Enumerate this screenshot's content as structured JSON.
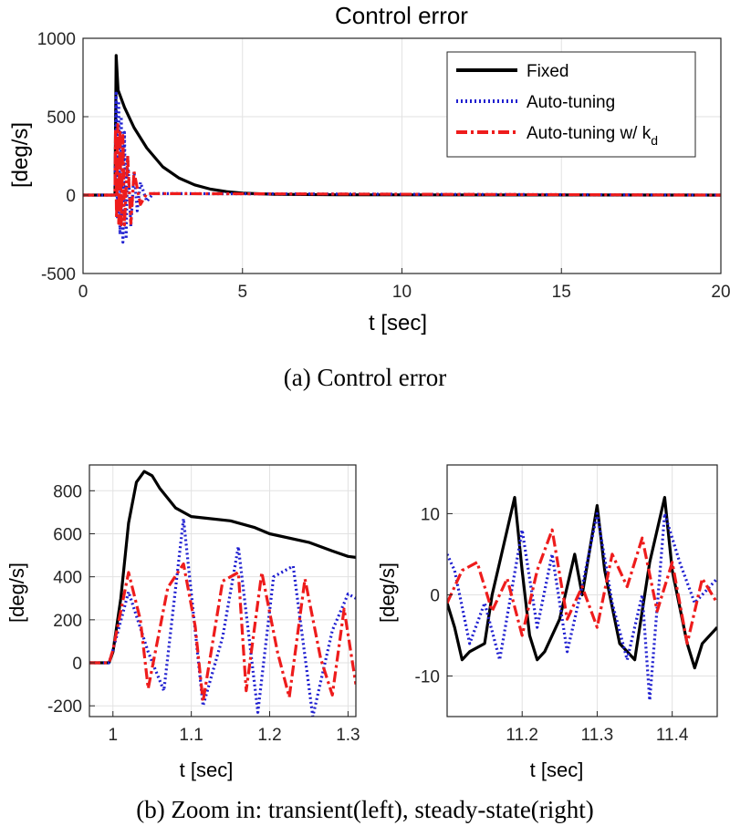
{
  "caption_a": "(a) Control error",
  "caption_b": "(b) Zoom in: transient(left), steady-state(right)",
  "colors": {
    "fixed": "#000000",
    "auto": "#1f1fd0",
    "autokd": "#ee1c1c"
  },
  "chart_data": [
    {
      "type": "line",
      "title": "Control error",
      "xlabel": "t [sec]",
      "ylabel": "[deg/s]",
      "xlim": [
        0,
        20
      ],
      "ylim": [
        -500,
        1000
      ],
      "xticks": [
        0,
        5,
        10,
        15,
        20
      ],
      "yticks": [
        -500,
        0,
        500,
        1000
      ],
      "grid": true,
      "legend_position": "top-right",
      "series": [
        {
          "name": "Fixed",
          "style": "solid",
          "color": "#000000",
          "x": [
            0,
            1.0,
            1.04,
            1.1,
            1.3,
            1.6,
            2.0,
            2.5,
            3.0,
            3.5,
            4.0,
            4.5,
            5.0,
            6.0,
            8.0,
            20.0
          ],
          "values": [
            0,
            0,
            890,
            670,
            560,
            430,
            300,
            180,
            110,
            65,
            38,
            22,
            12,
            5,
            2,
            0
          ]
        },
        {
          "name": "Auto-tuning",
          "style": "dotted",
          "color": "#1f1fd0",
          "x": [
            0,
            1.0,
            1.04,
            1.08,
            1.12,
            1.16,
            1.2,
            1.25,
            1.3,
            1.35,
            1.4,
            1.5,
            1.6,
            1.7,
            1.8,
            2.0,
            2.2,
            20.0
          ],
          "values": [
            0,
            0,
            650,
            -150,
            600,
            -250,
            500,
            -300,
            400,
            -280,
            250,
            -200,
            150,
            -100,
            80,
            -40,
            10,
            0
          ]
        },
        {
          "name": "Auto-tuning w/ k",
          "name_subscript": "d",
          "style": "dashdot",
          "color": "#ee1c1c",
          "x": [
            0,
            1.0,
            1.02,
            1.05,
            1.09,
            1.12,
            1.16,
            1.2,
            1.25,
            1.3,
            1.4,
            1.5,
            1.6,
            1.8,
            2.0,
            20.0
          ],
          "values": [
            0,
            0,
            420,
            -150,
            450,
            -180,
            420,
            -190,
            380,
            -190,
            250,
            -180,
            150,
            -60,
            10,
            0
          ]
        }
      ]
    },
    {
      "type": "line",
      "xlabel": "t [sec]",
      "ylabel": "[deg/s]",
      "xlim": [
        0.97,
        1.31
      ],
      "ylim": [
        -250,
        920
      ],
      "xticks": [
        1,
        1.1,
        1.2,
        1.3
      ],
      "yticks": [
        -200,
        0,
        200,
        400,
        600,
        800
      ],
      "grid": true,
      "series": [
        {
          "name": "Fixed",
          "style": "solid",
          "color": "#000000",
          "x": [
            0.97,
            0.995,
            1.0,
            1.01,
            1.02,
            1.03,
            1.04,
            1.05,
            1.06,
            1.08,
            1.1,
            1.12,
            1.15,
            1.18,
            1.2,
            1.25,
            1.28,
            1.3,
            1.31
          ],
          "values": [
            0,
            0,
            50,
            300,
            650,
            840,
            890,
            870,
            810,
            720,
            680,
            672,
            660,
            630,
            600,
            560,
            520,
            495,
            490
          ]
        },
        {
          "name": "Auto-tuning",
          "style": "dotted",
          "color": "#1f1fd0",
          "x": [
            0.97,
            0.995,
            1.0,
            1.02,
            1.045,
            1.065,
            1.09,
            1.115,
            1.14,
            1.16,
            1.185,
            1.205,
            1.23,
            1.255,
            1.28,
            1.3,
            1.31
          ],
          "values": [
            0,
            0,
            60,
            330,
            50,
            -130,
            670,
            -200,
            120,
            540,
            -230,
            400,
            450,
            -250,
            150,
            320,
            300
          ]
        },
        {
          "name": "Auto-tuning w/ k",
          "name_subscript": "d",
          "style": "dashdot",
          "color": "#ee1c1c",
          "x": [
            0.97,
            0.995,
            1.0,
            1.02,
            1.035,
            1.045,
            1.07,
            1.09,
            1.105,
            1.115,
            1.14,
            1.16,
            1.17,
            1.19,
            1.21,
            1.225,
            1.245,
            1.265,
            1.28,
            1.295,
            1.31
          ],
          "values": [
            0,
            0,
            60,
            420,
            200,
            -120,
            350,
            460,
            170,
            -180,
            380,
            420,
            -130,
            420,
            50,
            -160,
            390,
            20,
            -150,
            250,
            -100
          ]
        }
      ]
    },
    {
      "type": "line",
      "xlabel": "t [sec]",
      "ylabel": "[deg/s]",
      "xlim": [
        11.1,
        11.46
      ],
      "ylim": [
        -15,
        16
      ],
      "xticks": [
        11.2,
        11.3,
        11.4
      ],
      "yticks": [
        -10,
        0,
        10
      ],
      "grid": true,
      "series": [
        {
          "name": "Fixed",
          "style": "solid",
          "color": "#000000",
          "x": [
            11.1,
            11.11,
            11.12,
            11.13,
            11.15,
            11.16,
            11.17,
            11.19,
            11.2,
            11.21,
            11.22,
            11.23,
            11.25,
            11.27,
            11.28,
            11.3,
            11.31,
            11.33,
            11.35,
            11.36,
            11.37,
            11.39,
            11.4,
            11.42,
            11.43,
            11.44,
            11.46
          ],
          "values": [
            -1,
            -4,
            -8,
            -7,
            -6,
            0,
            4,
            12,
            3,
            -5,
            -8,
            -7,
            -3,
            5,
            0,
            11,
            3,
            -6,
            -8,
            -2,
            4,
            12,
            3,
            -6,
            -9,
            -6,
            -4
          ]
        },
        {
          "name": "Auto-tuning",
          "style": "dotted",
          "color": "#1f1fd0",
          "x": [
            11.1,
            11.11,
            11.13,
            11.15,
            11.17,
            11.2,
            11.22,
            11.24,
            11.26,
            11.28,
            11.3,
            11.32,
            11.34,
            11.36,
            11.37,
            11.39,
            11.41,
            11.43,
            11.46
          ],
          "values": [
            5,
            3,
            -6,
            -1,
            -8,
            8,
            -4,
            5,
            -7,
            1,
            10,
            -1,
            -8,
            0,
            -13,
            10,
            4,
            -1,
            2
          ]
        },
        {
          "name": "Auto-tuning w/ k",
          "name_subscript": "d",
          "style": "dashdot",
          "color": "#ee1c1c",
          "x": [
            11.1,
            11.12,
            11.14,
            11.16,
            11.18,
            11.2,
            11.22,
            11.24,
            11.26,
            11.28,
            11.3,
            11.32,
            11.34,
            11.36,
            11.38,
            11.4,
            11.42,
            11.44,
            11.46
          ],
          "values": [
            -1,
            3,
            4,
            -2,
            2,
            -5,
            3,
            8,
            -3,
            1,
            -4,
            5,
            1,
            7,
            -2,
            4,
            -6,
            2,
            -1
          ]
        }
      ]
    }
  ]
}
